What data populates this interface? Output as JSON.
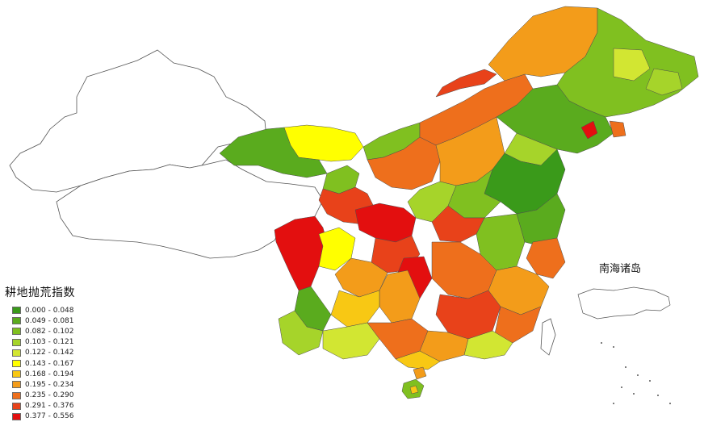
{
  "legend": {
    "title": "耕地抛荒指数",
    "classes": [
      {
        "label": "0.000 - 0.048",
        "color": "#3a9a1a"
      },
      {
        "label": "0.049 - 0.081",
        "color": "#5aab1e"
      },
      {
        "label": "0.082 - 0.102",
        "color": "#80c020"
      },
      {
        "label": "0.103 - 0.121",
        "color": "#a6d42a"
      },
      {
        "label": "0.122 - 0.142",
        "color": "#d2e632"
      },
      {
        "label": "0.143 - 0.167",
        "color": "#ffff00"
      },
      {
        "label": "0.168 - 0.194",
        "color": "#f8c814"
      },
      {
        "label": "0.195 - 0.234",
        "color": "#f39c1a"
      },
      {
        "label": "0.235 - 0.290",
        "color": "#ee6f1c"
      },
      {
        "label": "0.291 - 0.376",
        "color": "#e8421a"
      },
      {
        "label": "0.377 - 0.556",
        "color": "#e30f0f"
      }
    ]
  },
  "inset": {
    "title": "南海诸岛"
  }
}
